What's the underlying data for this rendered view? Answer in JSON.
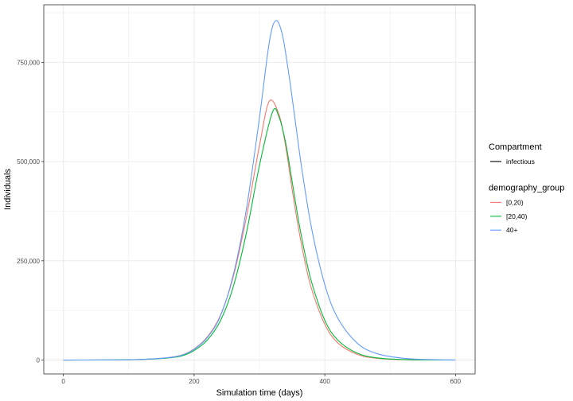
{
  "chart_data": {
    "type": "line",
    "title": "",
    "xlabel": "Simulation time (days)",
    "ylabel": "Individuals",
    "xlim": [
      -30,
      630
    ],
    "ylim": [
      -35000,
      895000
    ],
    "x_ticks": [
      0,
      200,
      400,
      600
    ],
    "x_tick_labels": [
      "0",
      "200",
      "400",
      "600"
    ],
    "y_ticks": [
      0,
      250000,
      500000,
      750000
    ],
    "y_tick_labels": [
      "0",
      "250,000",
      "500,000",
      "750,000"
    ],
    "grid": true,
    "legend_placement": "right",
    "legends": [
      {
        "title": "Compartment",
        "entries": [
          {
            "label": "infectious",
            "color": "#000000"
          }
        ]
      },
      {
        "title": "demography_group",
        "entries": [
          {
            "label": "[0,20)",
            "color": "#F8766D"
          },
          {
            "label": "[20,40)",
            "color": "#00BA38"
          },
          {
            "label": "40+",
            "color": "#619CFF"
          }
        ]
      }
    ],
    "series": [
      {
        "name": "[0,20)",
        "color": "#F8766D",
        "x": [
          0,
          100,
          150,
          180,
          200,
          220,
          240,
          260,
          280,
          300,
          315,
          330,
          340,
          350,
          360,
          370,
          380,
          400,
          420,
          450,
          480,
          520,
          560,
          600
        ],
        "y": [
          0,
          800,
          4500,
          12000,
          28000,
          58000,
          112000,
          210000,
          360000,
          540000,
          652000,
          618000,
          540000,
          430000,
          330000,
          245000,
          178000,
          90000,
          43000,
          14000,
          4500,
          1000,
          200,
          50
        ]
      },
      {
        "name": "[20,40)",
        "color": "#00BA38",
        "x": [
          0,
          100,
          150,
          180,
          200,
          220,
          240,
          260,
          280,
          300,
          320,
          330,
          340,
          350,
          360,
          370,
          380,
          400,
          420,
          450,
          480,
          520,
          560,
          600
        ],
        "y": [
          0,
          700,
          4000,
          10000,
          24000,
          50000,
          98000,
          185000,
          320000,
          490000,
          625000,
          612000,
          548000,
          450000,
          350000,
          265000,
          195000,
          100000,
          50000,
          17000,
          5500,
          1300,
          300,
          80
        ]
      },
      {
        "name": "40+",
        "color": "#619CFF",
        "x": [
          0,
          100,
          150,
          180,
          200,
          220,
          240,
          260,
          280,
          300,
          315,
          325,
          335,
          345,
          355,
          365,
          380,
          400,
          420,
          450,
          480,
          520,
          560,
          600
        ],
        "y": [
          0,
          800,
          4500,
          11500,
          27000,
          56000,
          110000,
          215000,
          380000,
          610000,
          800000,
          855000,
          820000,
          720000,
          600000,
          480000,
          330000,
          190000,
          105000,
          42000,
          16000,
          4500,
          1200,
          300
        ]
      }
    ]
  }
}
